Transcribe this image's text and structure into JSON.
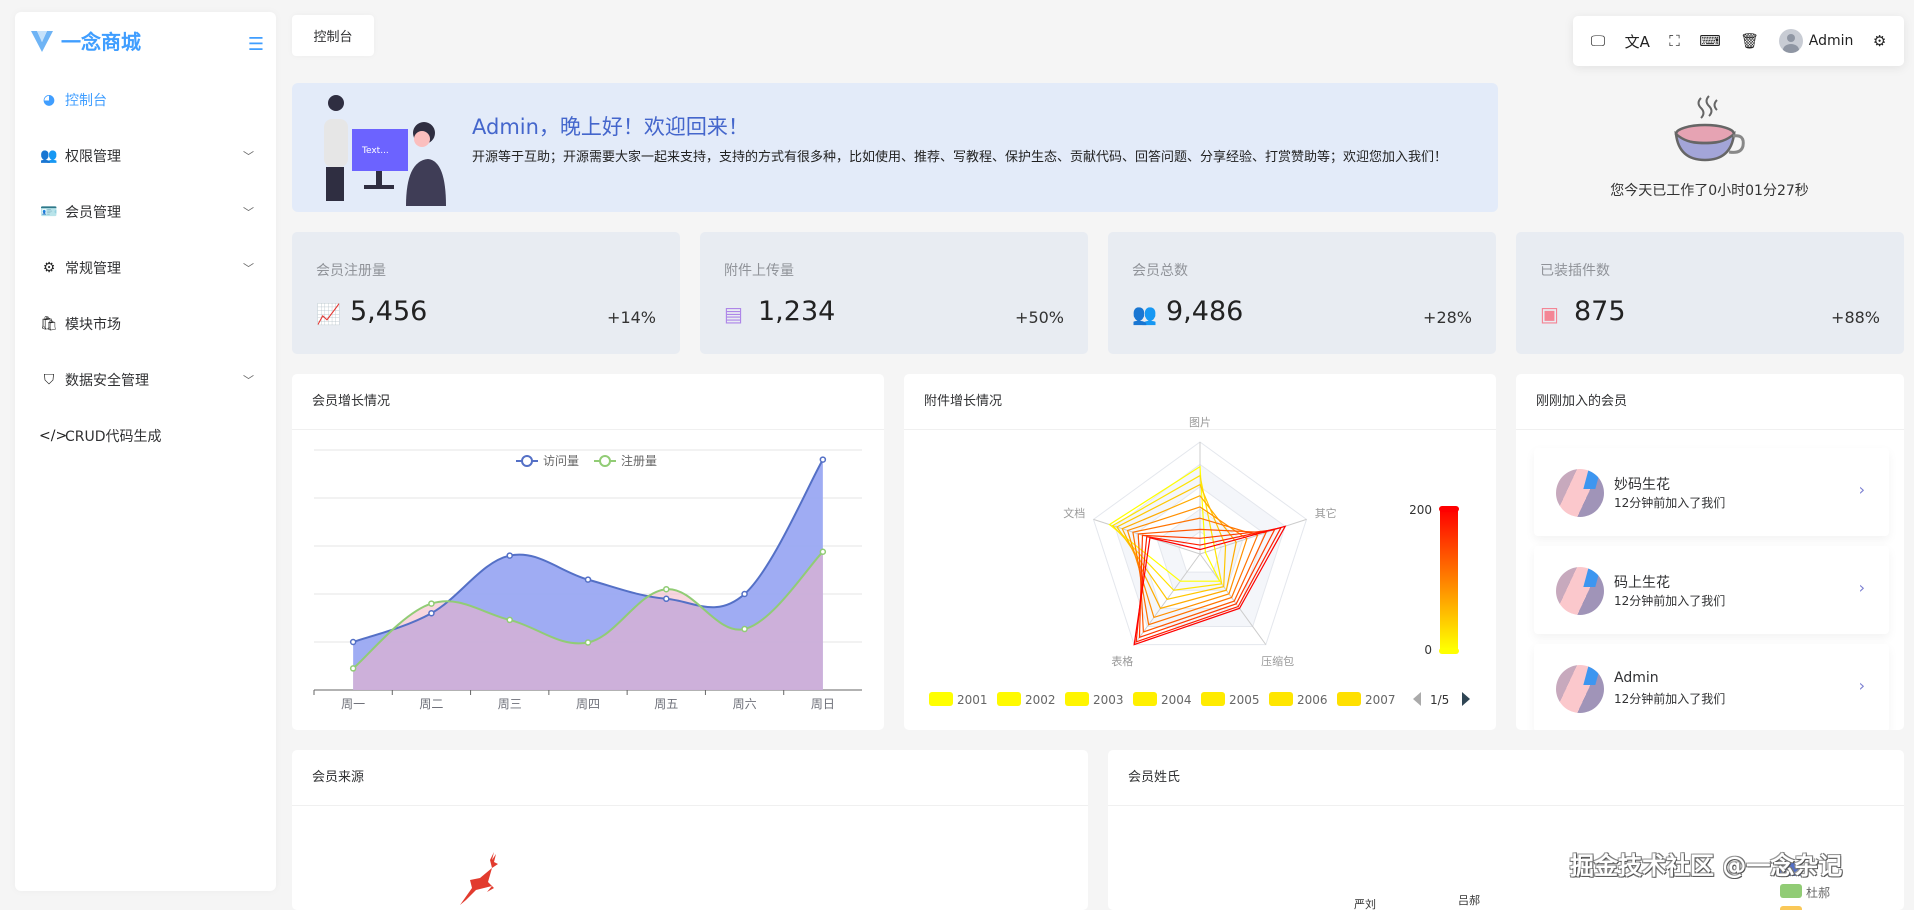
{
  "app": {
    "title": "一念商城"
  },
  "sidebar": {
    "items": [
      {
        "label": "控制台",
        "icon": "dashboard-icon",
        "glyph": "◕",
        "active": true,
        "expandable": false
      },
      {
        "label": "权限管理",
        "icon": "users-icon",
        "glyph": "👥",
        "expandable": true
      },
      {
        "label": "会员管理",
        "icon": "id-card-icon",
        "glyph": "🪪",
        "expandable": true
      },
      {
        "label": "常规管理",
        "icon": "gears-icon",
        "glyph": "⚙",
        "expandable": true
      },
      {
        "label": "模块市场",
        "icon": "shopping-bag-icon",
        "glyph": "🛍",
        "expandable": false
      },
      {
        "label": "数据安全管理",
        "icon": "shield-icon",
        "glyph": "⛉",
        "expandable": true
      },
      {
        "label": "CRUD代码生成",
        "icon": "code-icon",
        "glyph": "</>",
        "expandable": false
      }
    ]
  },
  "tabs": [
    {
      "label": "控制台"
    }
  ],
  "toolbar": {
    "items": [
      {
        "icon": "monitor-icon",
        "glyph": "🖵"
      },
      {
        "icon": "translate-icon",
        "glyph": "文A"
      },
      {
        "icon": "fullscreen-icon",
        "glyph": "⛶"
      },
      {
        "icon": "terminal-icon",
        "glyph": "⌨"
      },
      {
        "icon": "trash-icon",
        "glyph": "🗑"
      }
    ],
    "user": "Admin",
    "settings_icon": "gears-icon"
  },
  "banner": {
    "title": "Admin，晚上好！欢迎回来！",
    "text": "开源等于互助；开源需要大家一起来支持，支持的方式有很多种，比如使用、推荐、写教程、保护生态、贡献代码、回答问题、分享经验、打赏赞助等；欢迎您加入我们！"
  },
  "worktime": {
    "text": "您今天已工作了0小时01分27秒"
  },
  "stats": [
    {
      "title": "会员注册量",
      "value": "5,456",
      "percent": "+14%",
      "icon": "line-chart-icon",
      "glyph": "📈",
      "color": "#8595f4"
    },
    {
      "title": "附件上传量",
      "value": "1,234",
      "percent": "+50%",
      "icon": "file-icon",
      "glyph": "▤",
      "color": "#ae86e8"
    },
    {
      "title": "会员总数",
      "value": "9,486",
      "percent": "+28%",
      "icon": "users-icon",
      "glyph": "👥",
      "color": "#74a8b5"
    },
    {
      "title": "已装插件数",
      "value": "875",
      "percent": "+88%",
      "icon": "plugin-icon",
      "glyph": "▣",
      "color": "#f48595"
    }
  ],
  "cards": {
    "growth": "会员增长情况",
    "attachments": "附件增长情况",
    "recent": "刚刚加入的会员",
    "source": "会员来源",
    "surname": "会员姓氏"
  },
  "recent_members": [
    {
      "name": "妙码生花",
      "desc": "12分钟前加入了我们"
    },
    {
      "name": "码上生花",
      "desc": "12分钟前加入了我们"
    },
    {
      "name": "Admin",
      "desc": "12分钟前加入了我们"
    }
  ],
  "chart_data": [
    {
      "type": "area",
      "categories": [
        "周一",
        "周二",
        "周三",
        "周四",
        "周五",
        "周六",
        "周日"
      ],
      "ylim": [
        0,
        500
      ],
      "grid": true,
      "series": [
        {
          "name": "访问量",
          "values": [
            100,
            160,
            280,
            230,
            190,
            200,
            480
          ],
          "color": "#5470c6",
          "fill": "#9aa8f2"
        },
        {
          "name": "注册量",
          "values": [
            45,
            180,
            146,
            99,
            210,
            127,
            288
          ],
          "color": "#91cc75",
          "fill": "#f3b5c5"
        }
      ]
    },
    {
      "type": "radar",
      "indicators": [
        "图片",
        "其它",
        "压缩包",
        "表格",
        "文档"
      ],
      "max": 100,
      "legend": [
        "2001",
        "2002",
        "2003",
        "2004",
        "2005",
        "2006",
        "2007"
      ],
      "legend_page": "1/5",
      "visual_map": {
        "min": 0,
        "max": 200,
        "min_label": "0",
        "max_label": "200",
        "colors": [
          "#ffff00",
          "#ff0000"
        ]
      },
      "series": [
        {
          "level": 0,
          "values": [
            78,
            5,
            30,
            30,
            85
          ]
        },
        {
          "level": 22,
          "values": [
            70,
            14,
            33,
            40,
            82
          ]
        },
        {
          "level": 44,
          "values": [
            62,
            24,
            36,
            50,
            78
          ]
        },
        {
          "level": 66,
          "values": [
            52,
            34,
            40,
            60,
            73
          ]
        },
        {
          "level": 88,
          "values": [
            42,
            44,
            44,
            70,
            68
          ]
        },
        {
          "level": 110,
          "values": [
            32,
            54,
            48,
            78,
            63
          ]
        },
        {
          "level": 132,
          "values": [
            22,
            62,
            52,
            86,
            58
          ]
        },
        {
          "level": 154,
          "values": [
            14,
            70,
            55,
            92,
            54
          ]
        },
        {
          "level": 176,
          "values": [
            8,
            76,
            58,
            97,
            50
          ]
        },
        {
          "level": 200,
          "values": [
            4,
            80,
            60,
            100,
            47
          ]
        }
      ]
    },
    {
      "type": "pie",
      "labels": [
        "严刘",
        "吕郝"
      ],
      "legend": [
        "杜郝"
      ],
      "colors": [
        "#5470c6",
        "#91cc75",
        "#fac858"
      ]
    }
  ],
  "watermark": "掘金技术社区 @一念杂记"
}
